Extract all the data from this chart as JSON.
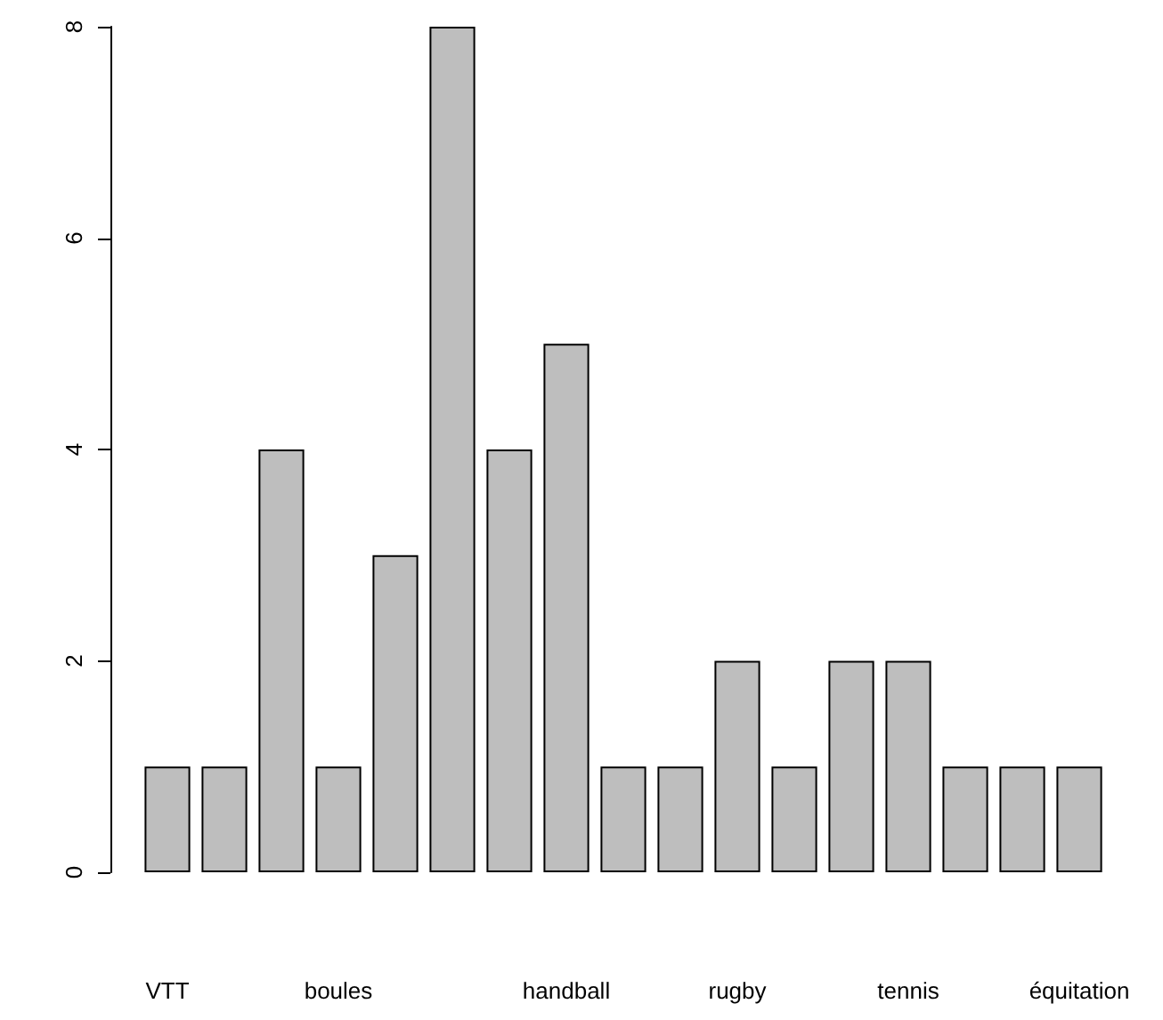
{
  "chart_data": {
    "type": "bar",
    "categories": [
      "VTT",
      null,
      null,
      "boules",
      null,
      null,
      null,
      "handball",
      null,
      null,
      "rugby",
      null,
      null,
      "tennis",
      null,
      null,
      "équitation"
    ],
    "values": [
      1,
      1,
      4,
      1,
      3,
      8,
      4,
      5,
      1,
      1,
      2,
      1,
      2,
      2,
      1,
      1,
      1
    ],
    "color": "#bebebe",
    "ylim": [
      0,
      8
    ],
    "yticks": [
      0,
      2,
      4,
      6,
      8
    ]
  }
}
